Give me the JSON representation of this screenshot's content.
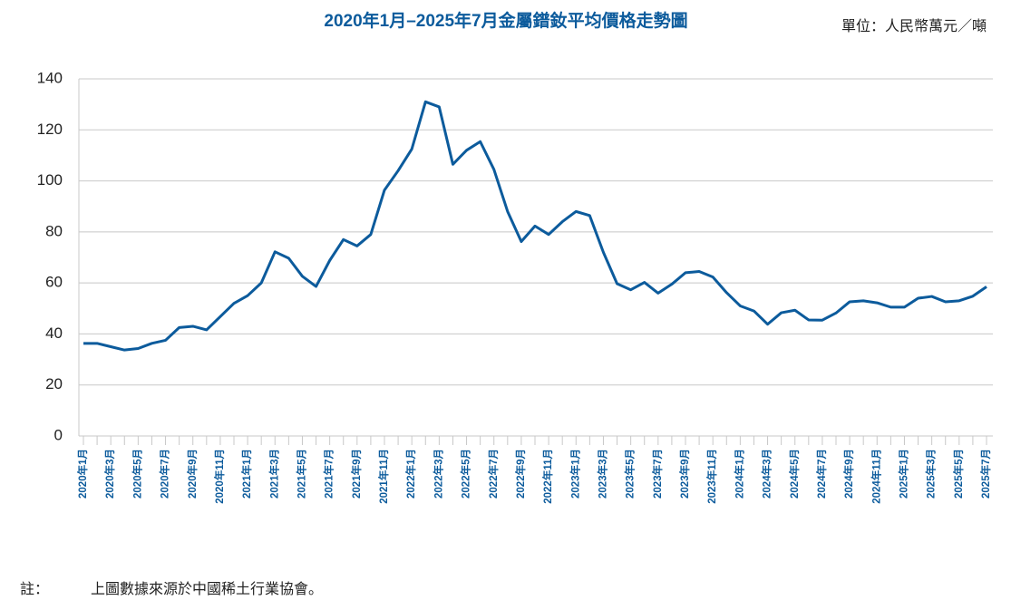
{
  "chart_data": {
    "type": "line",
    "title": "2020年1月–2025年7月金屬鐠釹平均價格走勢圖",
    "unit": "單位：人民幣萬元／噸",
    "categories": [
      "2020年1月",
      null,
      "2020年3月",
      null,
      "2020年5月",
      null,
      "2020年7月",
      null,
      "2020年9月",
      null,
      "2020年11月",
      null,
      "2021年1月",
      null,
      "2021年3月",
      null,
      "2021年5月",
      null,
      "2021年7月",
      null,
      "2021年9月",
      null,
      "2021年11月",
      null,
      "2022年1月",
      null,
      "2022年3月",
      null,
      "2022年5月",
      null,
      "2022年7月",
      null,
      "2022年9月",
      null,
      "2022年11月",
      null,
      "2023年1月",
      null,
      "2023年3月",
      null,
      "2023年5月",
      null,
      "2023年7月",
      null,
      "2023年9月",
      null,
      "2023年11月",
      null,
      "2024年1月",
      null,
      "2024年3月",
      null,
      "2024年5月",
      null,
      "2024年7月",
      null,
      "2024年9月",
      null,
      "2024年11月",
      null,
      "2025年1月",
      null,
      "2025年3月",
      null,
      "2025年5月",
      null,
      "2025年7月"
    ],
    "series": [
      {
        "color": "#0c5b9c",
        "values": [
          36.3,
          36.3,
          35,
          33.7,
          34.3,
          36.3,
          37.5,
          42.5,
          43,
          41.6,
          46.8,
          52,
          55,
          60,
          72.2,
          69.7,
          62.6,
          58.6,
          68.8,
          77,
          74.5,
          79,
          96.4,
          104,
          112.5,
          131,
          129,
          106.5,
          112,
          115.4,
          104.5,
          88,
          76.2,
          82.3,
          79,
          84,
          88,
          86.4,
          72,
          59.7,
          57.3,
          60.2,
          56,
          59.5,
          64,
          64.5,
          62.3,
          56.2,
          51,
          49,
          43.8,
          48.3,
          49.3,
          45.5,
          45.4,
          48.2,
          52.6,
          53,
          52.2,
          50.5,
          50.5,
          54,
          54.7,
          52.6,
          53,
          54.8,
          58.5
        ]
      }
    ],
    "ylim": [
      0,
      140
    ],
    "yticks": [
      0,
      20,
      40,
      60,
      80,
      100,
      120,
      140
    ],
    "grid": true
  },
  "note": {
    "label": "註：",
    "text": "上圖數據來源於中國稀土行業協會。"
  }
}
